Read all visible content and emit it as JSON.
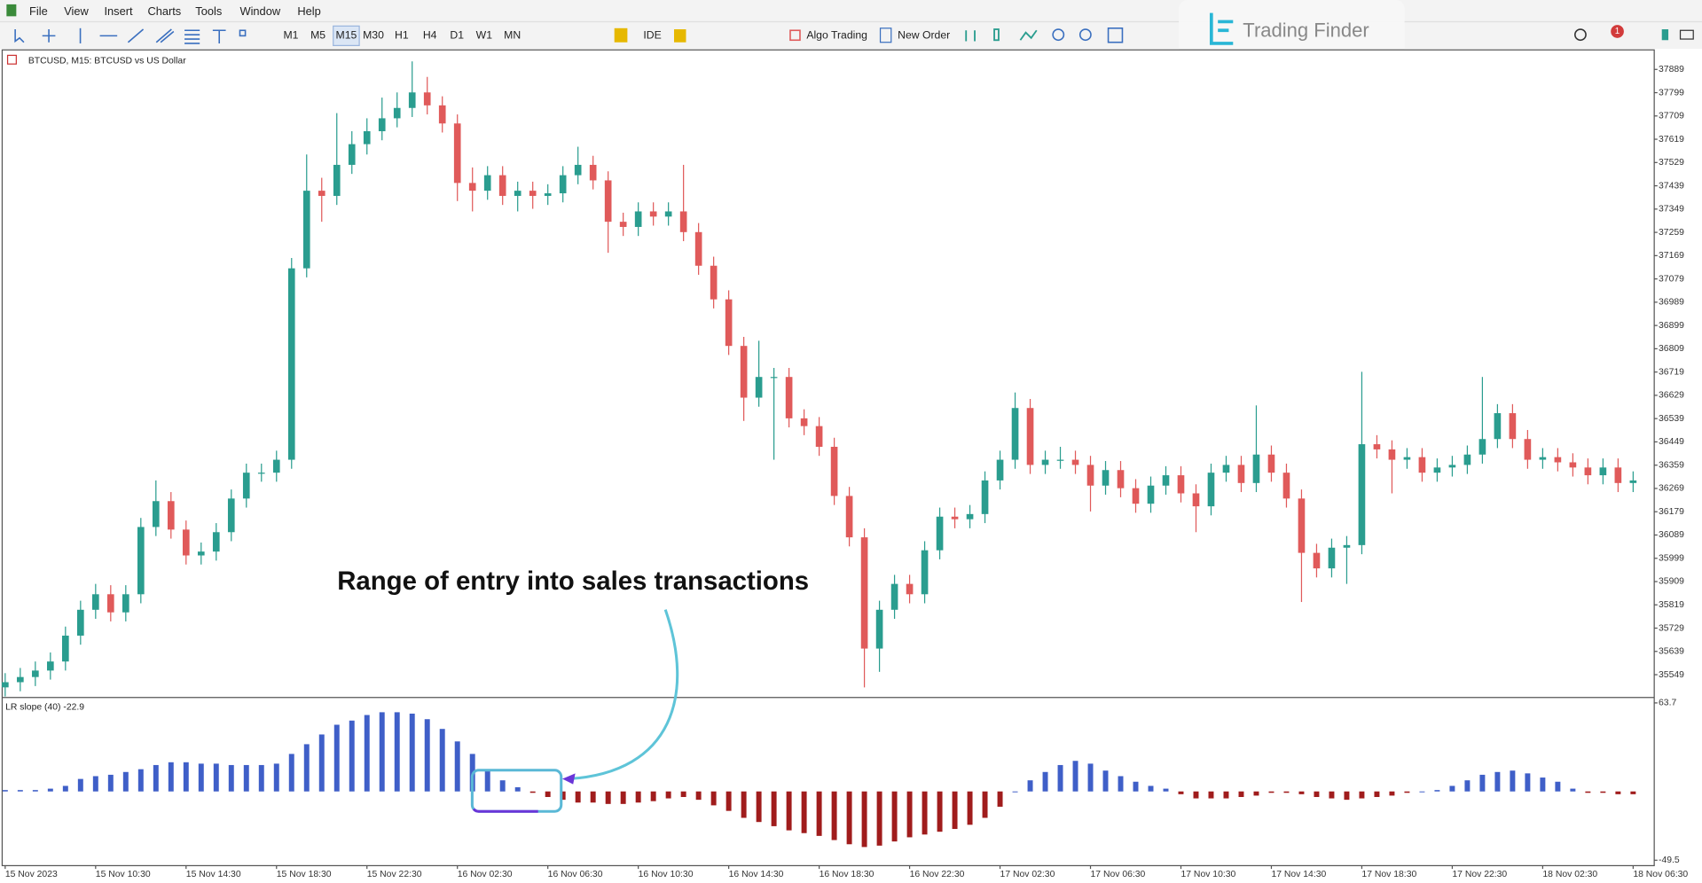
{
  "menu": [
    "File",
    "View",
    "Insert",
    "Charts",
    "Tools",
    "Window",
    "Help"
  ],
  "timeframes": [
    "M1",
    "M5",
    "M15",
    "M30",
    "H1",
    "H4",
    "D1",
    "W1",
    "MN"
  ],
  "toolbar": {
    "ide": "IDE",
    "algo": "Algo Trading",
    "order": "New Order"
  },
  "watermark": "Trading Finder",
  "badge": "1",
  "chart_data": [
    {
      "type": "candlestick",
      "title": "BTCUSD, M15:  BTCUSD vs US Dollar",
      "up_color": "#2a9d8f",
      "down_color": "#e05a5a",
      "candles": [
        [
          35500,
          35555,
          35465,
          35520
        ],
        [
          35520,
          35575,
          35485,
          35540
        ],
        [
          35540,
          35600,
          35505,
          35565
        ],
        [
          35565,
          35635,
          35530,
          35600
        ],
        [
          35600,
          35735,
          35565,
          35700
        ],
        [
          35700,
          35835,
          35665,
          35800
        ],
        [
          35800,
          35900,
          35765,
          35860
        ],
        [
          35860,
          35895,
          35755,
          35790
        ],
        [
          35790,
          35895,
          35755,
          35860
        ],
        [
          35860,
          36155,
          35825,
          36120
        ],
        [
          36120,
          36300,
          36085,
          36220
        ],
        [
          36220,
          36255,
          36075,
          36110
        ],
        [
          36110,
          36145,
          35975,
          36010
        ],
        [
          36010,
          36060,
          35975,
          36025
        ],
        [
          36025,
          36135,
          35990,
          36100
        ],
        [
          36100,
          36265,
          36065,
          36230
        ],
        [
          36230,
          36365,
          36195,
          36330
        ],
        [
          36330,
          36365,
          36295,
          36330
        ],
        [
          36330,
          36415,
          36295,
          36380
        ],
        [
          36380,
          37160,
          36345,
          37120
        ],
        [
          37120,
          37560,
          37085,
          37420
        ],
        [
          37420,
          37470,
          37300,
          37400
        ],
        [
          37400,
          37720,
          37365,
          37520
        ],
        [
          37520,
          37650,
          37485,
          37600
        ],
        [
          37600,
          37700,
          37560,
          37650
        ],
        [
          37650,
          37780,
          37615,
          37700
        ],
        [
          37700,
          37800,
          37665,
          37740
        ],
        [
          37740,
          37920,
          37705,
          37800
        ],
        [
          37800,
          37860,
          37715,
          37750
        ],
        [
          37750,
          37785,
          37645,
          37680
        ],
        [
          37680,
          37715,
          37380,
          37450
        ],
        [
          37450,
          37510,
          37340,
          37420
        ],
        [
          37420,
          37515,
          37385,
          37480
        ],
        [
          37480,
          37515,
          37365,
          37400
        ],
        [
          37400,
          37455,
          37340,
          37420
        ],
        [
          37420,
          37455,
          37350,
          37400
        ],
        [
          37400,
          37445,
          37365,
          37410
        ],
        [
          37410,
          37515,
          37375,
          37480
        ],
        [
          37480,
          37590,
          37445,
          37520
        ],
        [
          37520,
          37555,
          37425,
          37460
        ],
        [
          37460,
          37495,
          37180,
          37300
        ],
        [
          37300,
          37335,
          37245,
          37280
        ],
        [
          37280,
          37375,
          37245,
          37340
        ],
        [
          37340,
          37375,
          37285,
          37320
        ],
        [
          37320,
          37375,
          37285,
          37340
        ],
        [
          37340,
          37520,
          37225,
          37260
        ],
        [
          37260,
          37295,
          37095,
          37130
        ],
        [
          37130,
          37165,
          36965,
          37000
        ],
        [
          37000,
          37035,
          36785,
          36820
        ],
        [
          36820,
          36855,
          36530,
          36620
        ],
        [
          36620,
          36840,
          36585,
          36700
        ],
        [
          36700,
          36735,
          36380,
          36700
        ],
        [
          36700,
          36735,
          36505,
          36540
        ],
        [
          36540,
          36575,
          36475,
          36510
        ],
        [
          36510,
          36545,
          36395,
          36430
        ],
        [
          36430,
          36465,
          36205,
          36240
        ],
        [
          36240,
          36275,
          36045,
          36080
        ],
        [
          36080,
          36115,
          35500,
          35650
        ],
        [
          35650,
          35835,
          35560,
          35800
        ],
        [
          35800,
          35935,
          35765,
          35900
        ],
        [
          35900,
          35935,
          35825,
          35860
        ],
        [
          35860,
          36065,
          35825,
          36030
        ],
        [
          36030,
          36195,
          35995,
          36160
        ],
        [
          36160,
          36195,
          36115,
          36150
        ],
        [
          36150,
          36205,
          36115,
          36170
        ],
        [
          36170,
          36335,
          36135,
          36300
        ],
        [
          36300,
          36415,
          36265,
          36380
        ],
        [
          36380,
          36640,
          36345,
          36580
        ],
        [
          36580,
          36615,
          36325,
          36360
        ],
        [
          36360,
          36415,
          36325,
          36380
        ],
        [
          36380,
          36430,
          36345,
          36380
        ],
        [
          36380,
          36415,
          36325,
          36360
        ],
        [
          36360,
          36395,
          36180,
          36280
        ],
        [
          36280,
          36375,
          36245,
          36340
        ],
        [
          36340,
          36375,
          36235,
          36270
        ],
        [
          36270,
          36305,
          36175,
          36210
        ],
        [
          36210,
          36315,
          36175,
          36280
        ],
        [
          36280,
          36355,
          36245,
          36320
        ],
        [
          36320,
          36355,
          36215,
          36250
        ],
        [
          36250,
          36285,
          36100,
          36200
        ],
        [
          36200,
          36365,
          36165,
          36330
        ],
        [
          36330,
          36395,
          36295,
          36360
        ],
        [
          36360,
          36395,
          36255,
          36290
        ],
        [
          36290,
          36590,
          36255,
          36400
        ],
        [
          36400,
          36435,
          36295,
          36330
        ],
        [
          36330,
          36365,
          36195,
          36230
        ],
        [
          36230,
          36265,
          35830,
          36020
        ],
        [
          36020,
          36055,
          35925,
          35960
        ],
        [
          35960,
          36075,
          35925,
          36040
        ],
        [
          36040,
          36085,
          35900,
          36050
        ],
        [
          36050,
          36720,
          36015,
          36440
        ],
        [
          36440,
          36475,
          36385,
          36420
        ],
        [
          36420,
          36455,
          36250,
          36380
        ],
        [
          36380,
          36425,
          36345,
          36390
        ],
        [
          36390,
          36425,
          36295,
          36330
        ],
        [
          36330,
          36385,
          36295,
          36350
        ],
        [
          36350,
          36395,
          36315,
          36360
        ],
        [
          36360,
          36435,
          36325,
          36400
        ],
        [
          36400,
          36700,
          36365,
          36460
        ],
        [
          36460,
          36595,
          36425,
          36560
        ],
        [
          36560,
          36595,
          36425,
          36460
        ],
        [
          36460,
          36495,
          36345,
          36380
        ],
        [
          36380,
          36425,
          36345,
          36390
        ],
        [
          36390,
          36425,
          36335,
          36370
        ],
        [
          36370,
          36405,
          36315,
          36350
        ],
        [
          36350,
          36385,
          36285,
          36320
        ],
        [
          36320,
          36385,
          36285,
          36350
        ],
        [
          36350,
          36385,
          36255,
          36290
        ],
        [
          36290,
          36335,
          36255,
          36300
        ]
      ],
      "xlim": [
        -0.2,
        109.4
      ],
      "ylim": [
        35465,
        37956
      ],
      "yticks": [
        37889,
        37799,
        37709,
        37619,
        37529,
        37439,
        37349,
        37259,
        37169,
        37079,
        36989,
        36899,
        36809,
        36719,
        36629,
        36539,
        36449,
        36359,
        36269,
        36179,
        36089,
        35999,
        35909,
        35819,
        35729,
        35639,
        35549
      ]
    },
    {
      "type": "bar",
      "title": "LR slope (40) -22.9",
      "positive_color": "#3f5fc8",
      "negative_color": "#a01c1c",
      "annotation": "Range of entry into sales transactions",
      "values": [
        1,
        1,
        1,
        2,
        4,
        9,
        11,
        12,
        14,
        16,
        19,
        21,
        21,
        20,
        20,
        19,
        19,
        19,
        20,
        27,
        34,
        41,
        48,
        51,
        55,
        57,
        57,
        56,
        52,
        45,
        36,
        27,
        15,
        8,
        3,
        -1,
        -4,
        -6,
        -8,
        -8,
        -9,
        -9,
        -8,
        -7,
        -5,
        -4,
        -6,
        -10,
        -14,
        -19,
        -22,
        -25,
        -28,
        -30,
        -32,
        -35,
        -38,
        -40,
        -39,
        -36,
        -33,
        -31,
        -29,
        -27,
        -24,
        -19,
        -11,
        0,
        8,
        14,
        19,
        22,
        20,
        15,
        11,
        7,
        4,
        2,
        -2,
        -5,
        -5,
        -5,
        -4,
        -3,
        -1,
        -1,
        -2,
        -4,
        -5,
        -6,
        -5,
        -4,
        -3,
        -1,
        0,
        1,
        4,
        8,
        12,
        14,
        15,
        13,
        10,
        7,
        2,
        -1,
        -1,
        -2,
        -2
      ],
      "xlim": [
        -0.2,
        109.4
      ],
      "ylim": [
        -49.5,
        63.7
      ],
      "yticks": [
        63.7,
        -49.5
      ],
      "xticks": [
        {
          "value": 0,
          "label": "15 Nov 2023"
        },
        {
          "value": 6,
          "label": "15 Nov 10:30"
        },
        {
          "value": 12,
          "label": "15 Nov 14:30"
        },
        {
          "value": 18,
          "label": "15 Nov 18:30"
        },
        {
          "value": 24,
          "label": "15 Nov 22:30"
        },
        {
          "value": 30,
          "label": "16 Nov 02:30"
        },
        {
          "value": 36,
          "label": "16 Nov 06:30"
        },
        {
          "value": 42,
          "label": "16 Nov 10:30"
        },
        {
          "value": 48,
          "label": "16 Nov 14:30"
        },
        {
          "value": 54,
          "label": "16 Nov 18:30"
        },
        {
          "value": 60,
          "label": "16 Nov 22:30"
        },
        {
          "value": 66,
          "label": "17 Nov 02:30"
        },
        {
          "value": 72,
          "label": "17 Nov 06:30"
        },
        {
          "value": 78,
          "label": "17 Nov 10:30"
        },
        {
          "value": 84,
          "label": "17 Nov 14:30"
        },
        {
          "value": 90,
          "label": "17 Nov 18:30"
        },
        {
          "value": 96,
          "label": "17 Nov 22:30"
        },
        {
          "value": 102,
          "label": "18 Nov 02:30"
        },
        {
          "value": 108,
          "label": "18 Nov 06:30"
        }
      ]
    }
  ]
}
